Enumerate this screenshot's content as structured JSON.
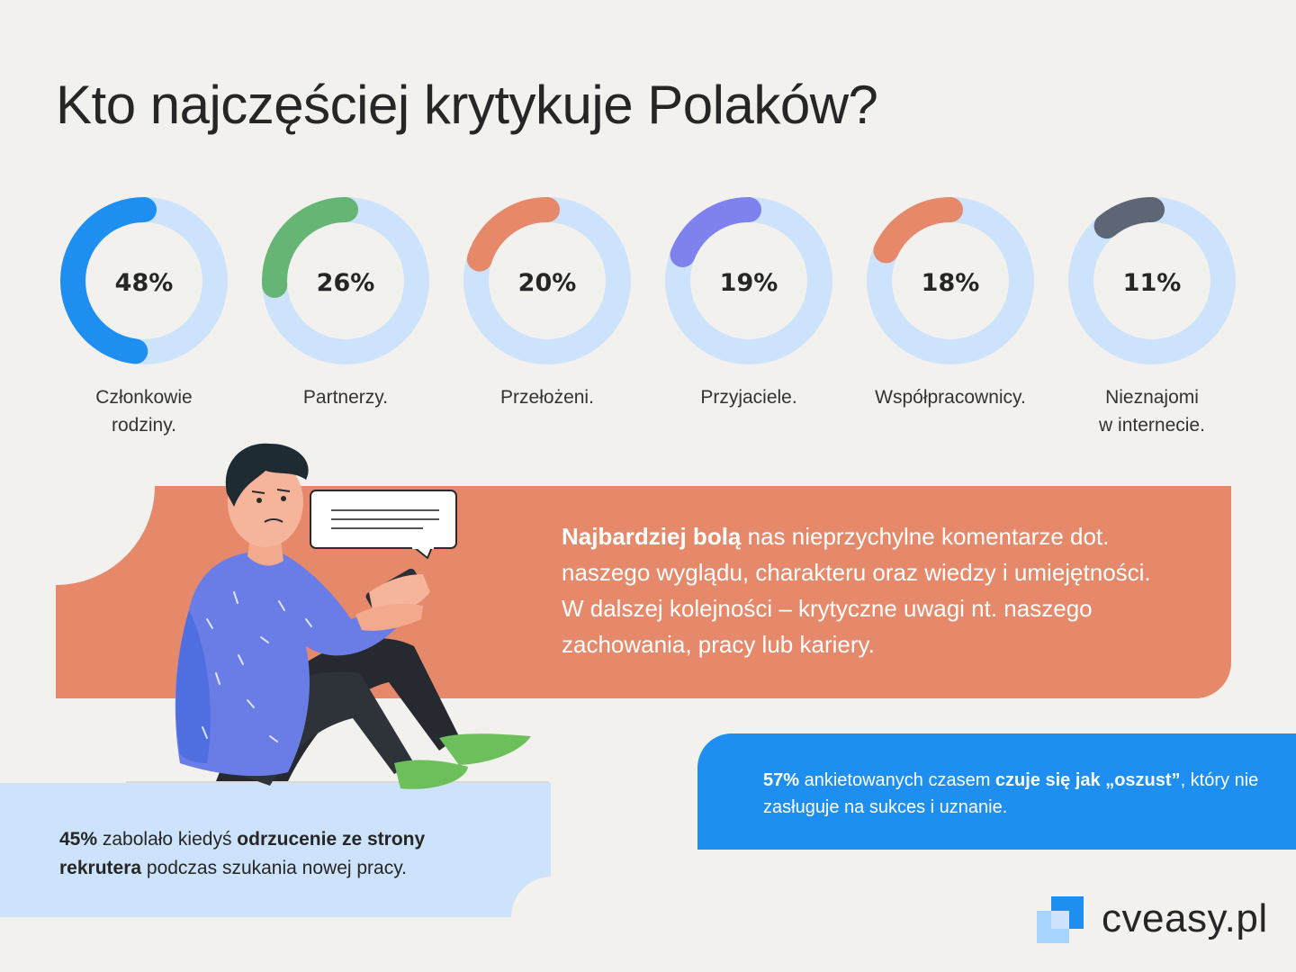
{
  "title": "Kto najczęściej krytykuje Polaków?",
  "chart_data": {
    "type": "donut",
    "title": "Kto najczęściej krytykuje Polaków?",
    "track_color": "#cce3fb",
    "series": [
      {
        "value_label": "48%",
        "value": 48,
        "label_line1": "Członkowie",
        "label_line2": "rodziny.",
        "color": "#1e8ff0"
      },
      {
        "value_label": "26%",
        "value": 26,
        "label_line1": "Partnerzy.",
        "label_line2": "",
        "color": "#66b575"
      },
      {
        "value_label": "20%",
        "value": 20,
        "label_line1": "Przełożeni.",
        "label_line2": "",
        "color": "#e6896a"
      },
      {
        "value_label": "19%",
        "value": 19,
        "label_line1": "Przyjaciele.",
        "label_line2": "",
        "color": "#7f82ec"
      },
      {
        "value_label": "18%",
        "value": 18,
        "label_line1": "Współpracownicy.",
        "label_line2": "",
        "color": "#e6896a"
      },
      {
        "value_label": "11%",
        "value": 11,
        "label_line1": "Nieznajomi",
        "label_line2": "w internecie.",
        "color": "#5e6575"
      }
    ]
  },
  "orange_box": {
    "bold": "Najbardziej bolą",
    "rest": " nas nieprzychylne komentarze dot. naszego wyglądu, charakteru oraz wiedzy i umiejętności. W dalszej kolejności – krytyczne uwagi nt. naszego zachowania, pracy lub kariery."
  },
  "blue_box": {
    "pct": "57%",
    "part1": " ankietowanych czasem ",
    "bold": "czuje się jak „oszust”",
    "part2": ", który nie zasługuje na sukces i uznanie."
  },
  "light_blue_box": {
    "pct": "45%",
    "part1": " zabolało kiedyś ",
    "bold": "odrzucenie ze strony rekrutera",
    "part2": " podczas szukania nowej pracy."
  },
  "logo": {
    "text": "cveasy.pl"
  },
  "colors": {
    "background": "#f2f1ee",
    "orange": "#e6896a",
    "blue": "#1e8ff0",
    "light_blue": "#cce3fb"
  }
}
